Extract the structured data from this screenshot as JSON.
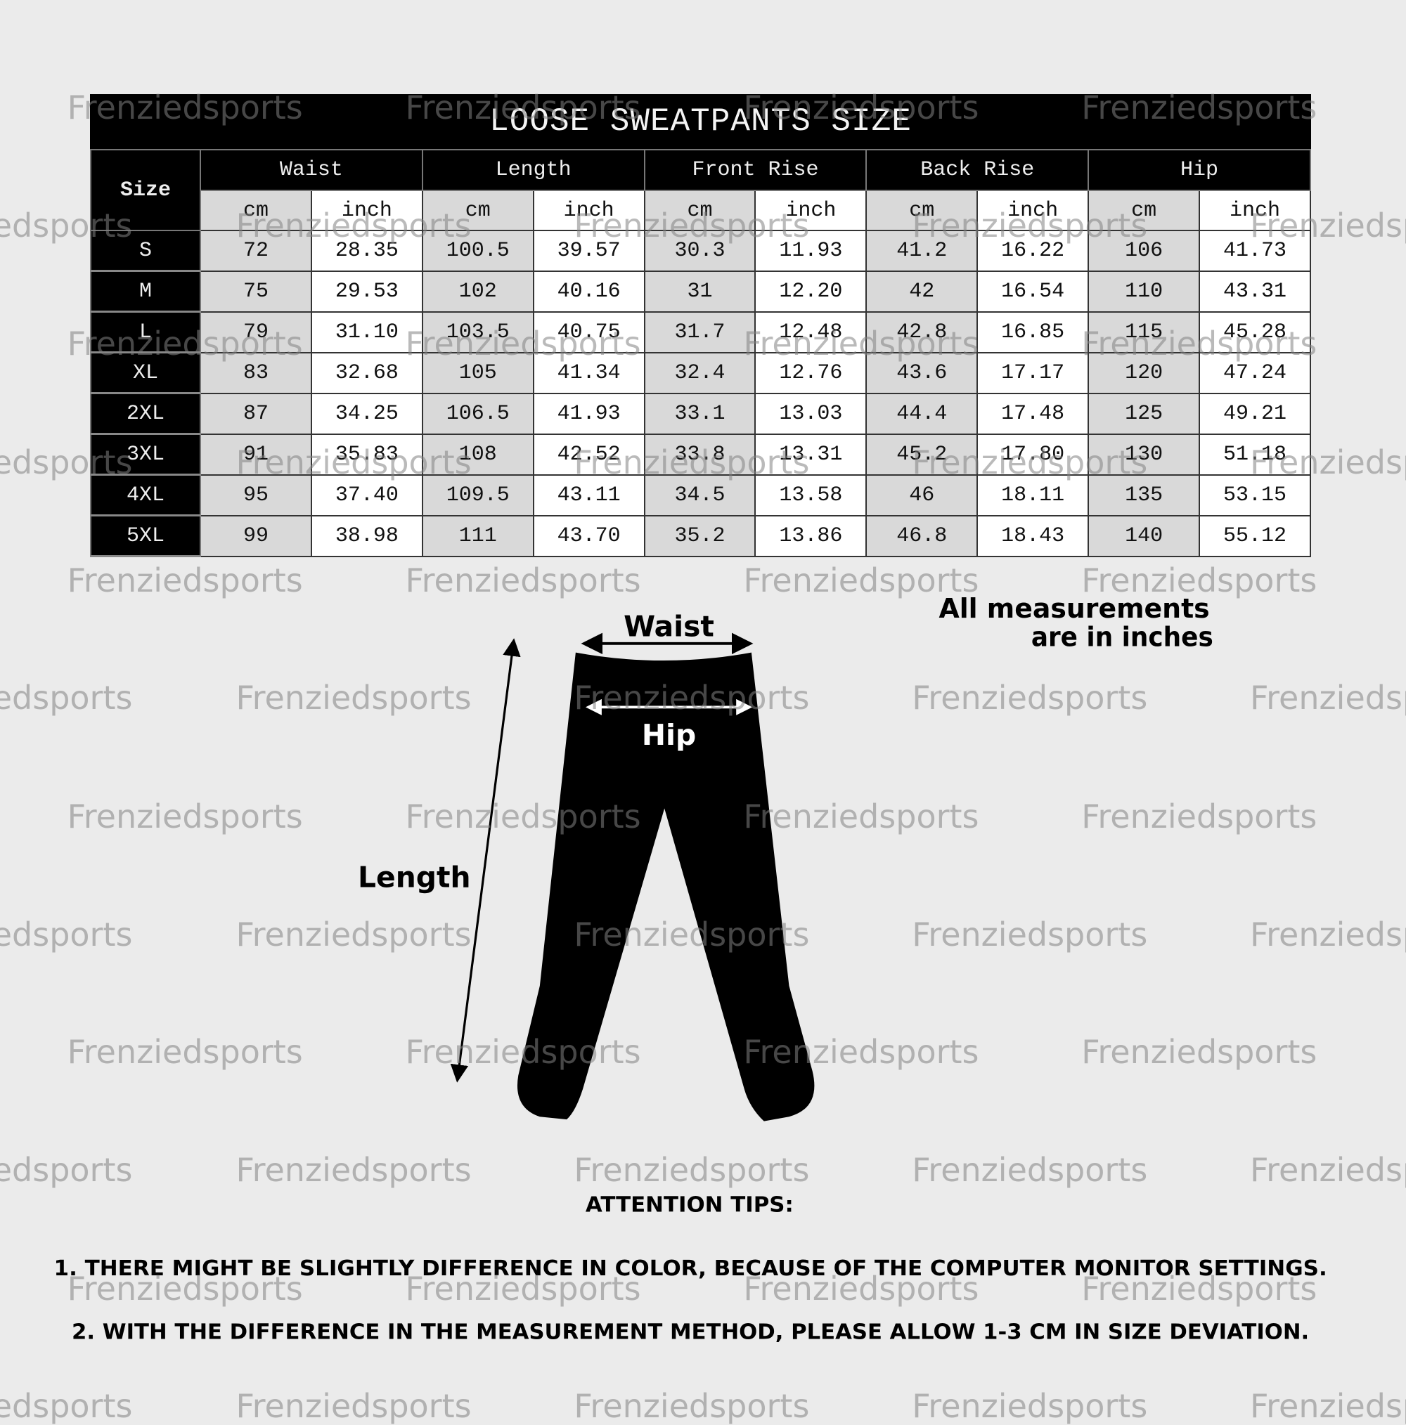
{
  "table": {
    "title": "LOOSE SWEATPANTS SIZE",
    "size_header": "Size",
    "groups": [
      "Waist",
      "Length",
      "Front Rise",
      "Back Rise",
      "Hip"
    ],
    "units": [
      "cm",
      "inch"
    ],
    "rows": [
      {
        "size": "S",
        "values": [
          "72",
          "28.35",
          "100.5",
          "39.57",
          "30.3",
          "11.93",
          "41.2",
          "16.22",
          "106",
          "41.73"
        ]
      },
      {
        "size": "M",
        "values": [
          "75",
          "29.53",
          "102",
          "40.16",
          "31",
          "12.20",
          "42",
          "16.54",
          "110",
          "43.31"
        ]
      },
      {
        "size": "L",
        "values": [
          "79",
          "31.10",
          "103.5",
          "40.75",
          "31.7",
          "12.48",
          "42.8",
          "16.85",
          "115",
          "45.28"
        ]
      },
      {
        "size": "XL",
        "values": [
          "83",
          "32.68",
          "105",
          "41.34",
          "32.4",
          "12.76",
          "43.6",
          "17.17",
          "120",
          "47.24"
        ]
      },
      {
        "size": "2XL",
        "values": [
          "87",
          "34.25",
          "106.5",
          "41.93",
          "33.1",
          "13.03",
          "44.4",
          "17.48",
          "125",
          "49.21"
        ]
      },
      {
        "size": "3XL",
        "values": [
          "91",
          "35.83",
          "108",
          "42.52",
          "33.8",
          "13.31",
          "45.2",
          "17.80",
          "130",
          "51.18"
        ]
      },
      {
        "size": "4XL",
        "values": [
          "95",
          "37.40",
          "109.5",
          "43.11",
          "34.5",
          "13.58",
          "46",
          "18.11",
          "135",
          "53.15"
        ]
      },
      {
        "size": "5XL",
        "values": [
          "99",
          "38.98",
          "111",
          "43.70",
          "35.2",
          "13.86",
          "46.8",
          "18.43",
          "140",
          "55.12"
        ]
      }
    ]
  },
  "diagram": {
    "waist_label": "Waist",
    "hip_label": "Hip",
    "length_label": "Length",
    "note_line1": "All measurements",
    "note_line2": "are in inches",
    "icon": "sweatpants-silhouette"
  },
  "tips": {
    "heading": "ATTENTION TIPS:",
    "line1": "1. THERE MIGHT BE SLIGHTLY DIFFERENCE IN COLOR, BECAUSE OF THE COMPUTER MONITOR SETTINGS.",
    "line2": "2. WITH THE DIFFERENCE IN THE MEASUREMENT METHOD, PLEASE ALLOW 1-3 CM IN SIZE DEVIATION."
  },
  "watermark": "Frenziedsports",
  "colors": {
    "background": "#ebebeb",
    "header": "#000000",
    "cm_cell": "#d9d9d9",
    "inch_cell": "#ffffff"
  }
}
